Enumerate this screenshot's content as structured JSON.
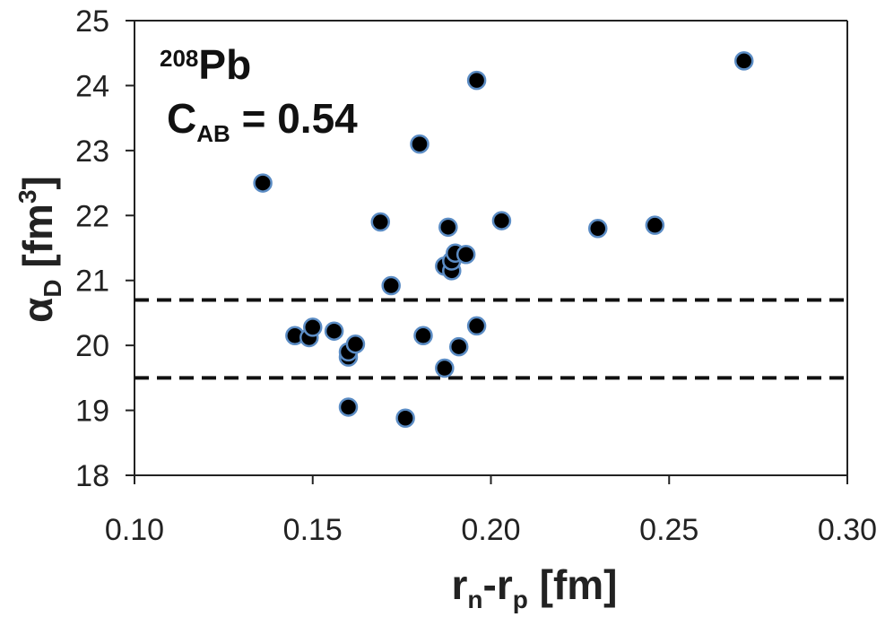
{
  "chart_data": {
    "type": "scatter",
    "xlabel": {
      "main": "r",
      "sub1": "n",
      "dash": "-",
      "main2": "r",
      "sub2": "p",
      "unit": " [fm]"
    },
    "ylabel": {
      "main": "α",
      "sub": "D",
      "unit_open": " [fm",
      "sup": "3",
      "unit_close": "]"
    },
    "xlim": [
      0.1,
      0.3
    ],
    "ylim": [
      18,
      25
    ],
    "xticks": [
      "0.10",
      "0.15",
      "0.20",
      "0.25",
      "0.30"
    ],
    "yticks": [
      "18",
      "19",
      "20",
      "21",
      "22",
      "23",
      "24",
      "25"
    ],
    "grid": false,
    "annotation": {
      "nucleus_mass": "208",
      "nucleus_symbol": "Pb",
      "coef_main": "C",
      "coef_sub": "AB",
      "coef_value": " = 0.54"
    },
    "reference_lines": [
      {
        "y": 20.7,
        "style": "dashed"
      },
      {
        "y": 19.5,
        "style": "dashed"
      }
    ],
    "marker_fill": "#000000",
    "marker_edge": "#5b8cc4",
    "points": [
      {
        "x": 0.136,
        "y": 22.5
      },
      {
        "x": 0.145,
        "y": 20.15
      },
      {
        "x": 0.149,
        "y": 20.12
      },
      {
        "x": 0.15,
        "y": 20.28
      },
      {
        "x": 0.156,
        "y": 20.22
      },
      {
        "x": 0.16,
        "y": 19.82
      },
      {
        "x": 0.16,
        "y": 19.05
      },
      {
        "x": 0.16,
        "y": 19.9
      },
      {
        "x": 0.162,
        "y": 20.02
      },
      {
        "x": 0.169,
        "y": 21.9
      },
      {
        "x": 0.172,
        "y": 20.92
      },
      {
        "x": 0.176,
        "y": 18.88
      },
      {
        "x": 0.18,
        "y": 23.1
      },
      {
        "x": 0.181,
        "y": 20.15
      },
      {
        "x": 0.187,
        "y": 19.65
      },
      {
        "x": 0.187,
        "y": 21.22
      },
      {
        "x": 0.188,
        "y": 21.82
      },
      {
        "x": 0.189,
        "y": 21.15
      },
      {
        "x": 0.189,
        "y": 21.3
      },
      {
        "x": 0.19,
        "y": 21.42
      },
      {
        "x": 0.191,
        "y": 19.98
      },
      {
        "x": 0.193,
        "y": 21.4
      },
      {
        "x": 0.196,
        "y": 20.3
      },
      {
        "x": 0.196,
        "y": 24.08
      },
      {
        "x": 0.203,
        "y": 21.92
      },
      {
        "x": 0.23,
        "y": 21.8
      },
      {
        "x": 0.246,
        "y": 21.85
      },
      {
        "x": 0.271,
        "y": 24.38
      }
    ]
  }
}
